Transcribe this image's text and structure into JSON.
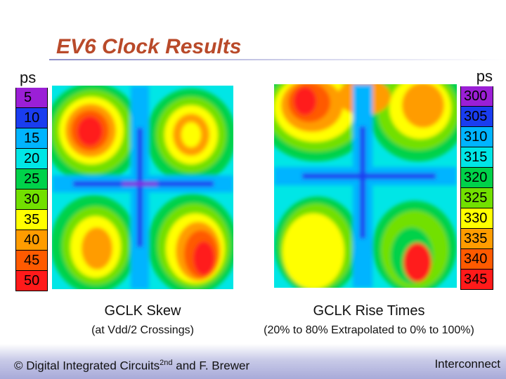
{
  "slide": {
    "title": "EV6 Clock Results",
    "footer_left_main": "© Digital Integrated Circuits",
    "footer_left_sup": "2nd",
    "footer_left_tail": " and F. Brewer",
    "footer_right": "Interconnect"
  },
  "chart_data": [
    {
      "type": "heatmap",
      "title": "GCLK Skew",
      "subtitle": "(at Vdd/2 Crossings)",
      "legend": {
        "unit": "ps",
        "placement": "left",
        "levels": [
          "5",
          "10",
          "15",
          "20",
          "25",
          "30",
          "35",
          "40",
          "45",
          "50"
        ],
        "colors": [
          "#9b1fd6",
          "#1a3df0",
          "#00b4ff",
          "#00e6e6",
          "#00d24a",
          "#72e000",
          "#ffff00",
          "#ff9c00",
          "#ff5a00",
          "#ff1a1a"
        ]
      },
      "grid": {
        "rows": 6,
        "cols": 4,
        "cell_levels": [
          [
            30,
            45,
            25,
            35
          ],
          [
            40,
            50,
            30,
            45
          ],
          [
            25,
            35,
            20,
            30
          ],
          [
            15,
            20,
            20,
            15
          ],
          [
            30,
            40,
            25,
            45
          ],
          [
            35,
            40,
            30,
            50
          ]
        ]
      }
    },
    {
      "type": "heatmap",
      "title": "GCLK Rise Times",
      "subtitle": "(20% to 80% Extrapolated to 0% to 100%)",
      "legend": {
        "unit": "ps",
        "placement": "right",
        "levels": [
          "300",
          "305",
          "310",
          "315",
          "320",
          "325",
          "330",
          "335",
          "340",
          "345"
        ],
        "colors": [
          "#9b1fd6",
          "#1a3df0",
          "#00b4ff",
          "#00e6e6",
          "#00d24a",
          "#72e000",
          "#ffff00",
          "#ff9c00",
          "#ff5a00",
          "#ff1a1a"
        ]
      },
      "grid": {
        "rows": 6,
        "cols": 4,
        "cell_levels": [
          [
            345,
            335,
            330,
            340
          ],
          [
            340,
            330,
            325,
            335
          ],
          [
            320,
            315,
            315,
            320
          ],
          [
            305,
            310,
            305,
            310
          ],
          [
            330,
            325,
            320,
            325
          ],
          [
            335,
            330,
            325,
            340
          ]
        ]
      }
    }
  ]
}
